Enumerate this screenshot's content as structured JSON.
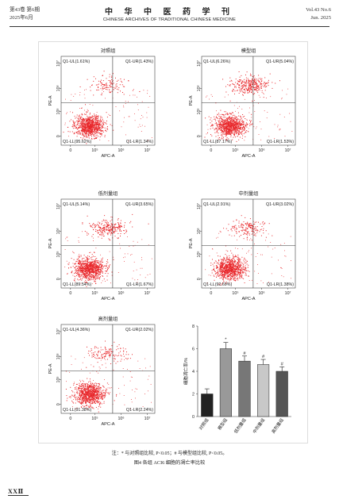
{
  "header": {
    "left_line1": "第43卷 第6期",
    "left_line2": "2025年6月",
    "title_cn": "中 华 中 医 药 学 刊",
    "title_en": "CHINESE ARCHIVES OF TRADITIONAL CHINESE MEDICINE",
    "right_line1": "Vol.43 No.6",
    "right_line2": "Jun. 2025"
  },
  "colors": {
    "dots": "#e8262a",
    "bar_control": "#222222",
    "bar_model": "#999999",
    "bar_low": "#777777",
    "bar_mid": "#c8c8c8",
    "bar_high": "#555555"
  },
  "panels": [
    {
      "title": "对照组",
      "ul": "Q1-UL(1.61%)",
      "ur": "Q1-UR(1.43%)",
      "ll": "Q1-LL(95.62%)",
      "lr": "Q1-LR(1.34%)",
      "ylabel": "PE-A",
      "xlabel": "APC-A",
      "xticks": [
        "0",
        "10⁵",
        "10⁶",
        "10⁷"
      ],
      "yticks": [
        "0",
        "10⁵",
        "10⁶",
        "10⁷"
      ]
    },
    {
      "title": "模型组",
      "ul": "Q1-UL(6.26%)",
      "ur": "Q1-UR(5.04%)",
      "ll": "Q1-LL(87.17%)",
      "lr": "Q1-LR(1.53%)",
      "ylabel": "PE-A",
      "xlabel": "APC-A",
      "xticks": [
        "0",
        "10⁵",
        "10⁶",
        "10⁷"
      ],
      "yticks": [
        "0",
        "10⁵",
        "10⁶",
        "10⁷"
      ]
    },
    {
      "title": "低剂量组",
      "ul": "Q1-UL(5.14%)",
      "ur": "Q1-UR(3.65%)",
      "ll": "Q1-LL(89.54%)",
      "lr": "Q1-LR(1.67%)",
      "ylabel": "PE-A",
      "xlabel": "APC-A",
      "xticks": [
        "0",
        "10⁵",
        "10⁶",
        "10⁷"
      ],
      "yticks": [
        "0",
        "10⁵",
        "10⁶",
        "10⁷"
      ]
    },
    {
      "title": "中剂量组",
      "ul": "Q1-UL(2.91%)",
      "ur": "Q1-UR(3.02%)",
      "ll": "Q1-LL(92.69%)",
      "lr": "Q1-LR(1.38%)",
      "ylabel": "PE-A",
      "xlabel": "APC-A",
      "xticks": [
        "0",
        "10⁵",
        "10⁶",
        "10⁷"
      ],
      "yticks": [
        "0",
        "10⁵",
        "10⁶",
        "10⁷"
      ]
    },
    {
      "title": "高剂量组",
      "ul": "Q1-UL(4.36%)",
      "ur": "Q1-UR(2.02%)",
      "ll": "Q1-LL(91.38%)",
      "lr": "Q1-LR(2.24%)",
      "ylabel": "PE-A",
      "xlabel": "APC-A",
      "xticks": [
        "0",
        "10⁵",
        "10⁶",
        "10⁷"
      ],
      "yticks": [
        "0",
        "10⁵",
        "10⁶",
        "10⁷"
      ]
    }
  ],
  "chart_data": {
    "type": "bar",
    "categories": [
      "对照组",
      "模型组",
      "低剂量组",
      "中剂量组",
      "高剂量组"
    ],
    "values": [
      2.0,
      6.0,
      4.9,
      4.6,
      4.0
    ],
    "errors": [
      0.45,
      0.55,
      0.45,
      0.45,
      0.4
    ],
    "marks": [
      "",
      "*",
      "#",
      "#",
      "#"
    ],
    "ylabel": "细胞凋亡率/%",
    "yticks": [
      "0",
      "2",
      "4",
      "6",
      "8"
    ],
    "ylim": [
      0,
      8
    ]
  },
  "note": "注：* 与对照组比较, P<0.05；# 与模型组比较, P<0.05。",
  "caption": "图4  各组 ACI6 细胞的凋亡率比较",
  "page_number": "XXⅡ"
}
